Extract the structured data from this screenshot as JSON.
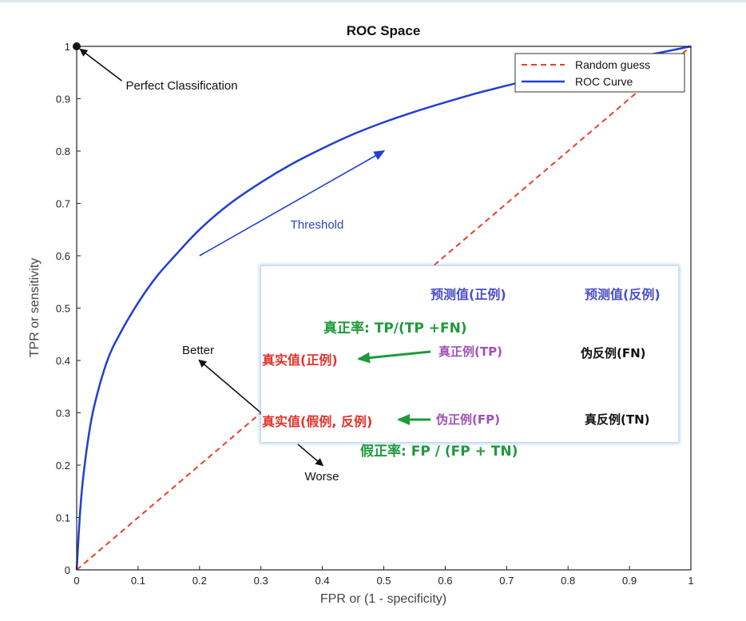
{
  "chart_data": {
    "type": "line",
    "title": "ROC Space",
    "xlabel": "FPR or (1 - specificity)",
    "ylabel": "TPR or sensitivity",
    "xlim": [
      0,
      1
    ],
    "ylim": [
      0,
      1
    ],
    "xticks": [
      "0",
      "0.1",
      "0.2",
      "0.3",
      "0.4",
      "0.5",
      "0.6",
      "0.7",
      "0.8",
      "0.9",
      "1"
    ],
    "yticks": [
      "0",
      "0.1",
      "0.2",
      "0.3",
      "0.4",
      "0.5",
      "0.6",
      "0.7",
      "0.8",
      "0.9",
      "1"
    ],
    "grid": false,
    "legend_position": "top-right",
    "series": [
      {
        "name": "Random guess",
        "style": "dashed",
        "color": "#e8402a",
        "x": [
          0,
          1
        ],
        "y": [
          0,
          1
        ]
      },
      {
        "name": "ROC Curve",
        "style": "solid",
        "color": "#2040d0",
        "x": [
          0,
          0.005,
          0.01,
          0.02,
          0.03,
          0.05,
          0.07,
          0.1,
          0.13,
          0.16,
          0.2,
          0.25,
          0.3,
          0.35,
          0.4,
          0.45,
          0.5,
          0.55,
          0.6,
          0.65,
          0.7,
          0.75,
          0.8,
          0.85,
          0.9,
          0.95,
          1.0
        ],
        "y": [
          0,
          0.1,
          0.17,
          0.26,
          0.32,
          0.4,
          0.45,
          0.51,
          0.56,
          0.6,
          0.65,
          0.7,
          0.74,
          0.775,
          0.805,
          0.832,
          0.855,
          0.875,
          0.893,
          0.91,
          0.925,
          0.94,
          0.953,
          0.965,
          0.977,
          0.988,
          1.0
        ]
      }
    ],
    "annotations": [
      {
        "text": "Perfect Classification",
        "point": [
          0,
          1
        ],
        "text_at": [
          0.08,
          0.925
        ]
      },
      {
        "text": "Threshold",
        "arrow_from": [
          0.2,
          0.6
        ],
        "arrow_to": [
          0.5,
          0.8
        ]
      },
      {
        "text": "Better",
        "arrow_from": [
          0.3,
          0.3
        ],
        "arrow_to": [
          0.2,
          0.4
        ]
      },
      {
        "text": "Worse",
        "arrow_from": [
          0.36,
          0.24
        ],
        "arrow_to": [
          0.4,
          0.2
        ]
      }
    ],
    "perfect_point": [
      0,
      1
    ]
  },
  "overlay": {
    "col_pred_pos": "预测值(正例)",
    "col_pred_neg": "预测值(反例)",
    "tpr_formula": "真正率: TP/(TP +FN)",
    "row_actual_pos": "真实值(正例)",
    "row_actual_neg": "真实值(假例, 反例)",
    "cell_tp": "真正例(TP)",
    "cell_fn": "伪反例(FN)",
    "cell_fp": "伪正例(FP)",
    "cell_tn": "真反例(TN)",
    "fpr_formula": "假正率: FP / (FP + TN)"
  }
}
